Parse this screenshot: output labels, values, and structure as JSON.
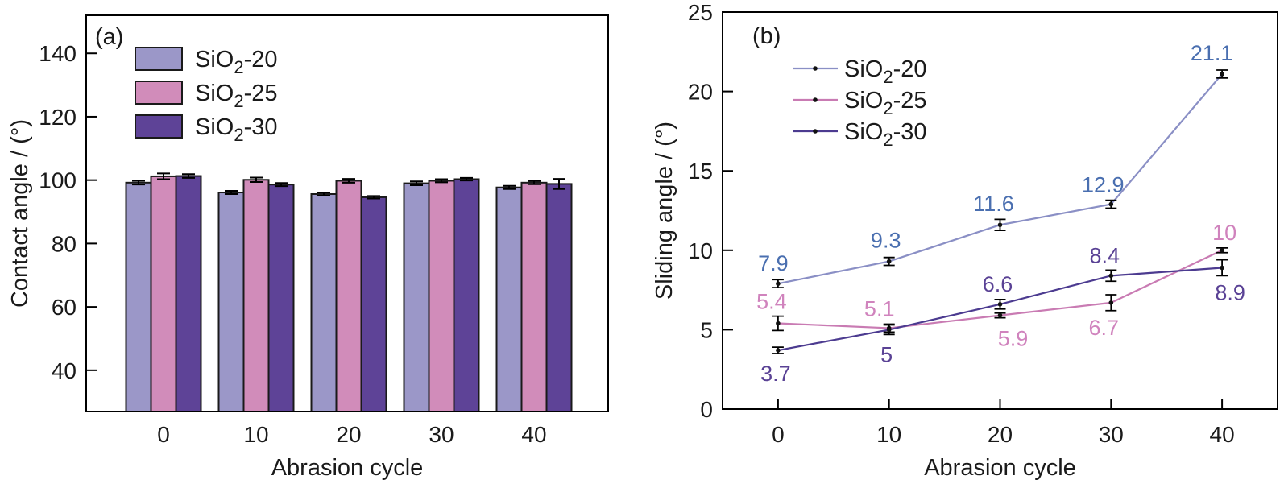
{
  "chart_data": [
    {
      "panel": "a",
      "tag": "(a)",
      "type": "bar",
      "xlabel": "Abrasion cycle",
      "ylabel": "Contact angle / (°)",
      "categories": [
        "0",
        "10",
        "20",
        "30",
        "40"
      ],
      "ylim": [
        27,
        152
      ],
      "yticks": [
        40,
        60,
        80,
        100,
        120,
        140
      ],
      "grid": false,
      "legend_position": "upper-left-inside",
      "axis_color": "#000000",
      "text_color": "#1a1a1a",
      "series": [
        {
          "label": "SiO2-20",
          "label_base": "SiO",
          "label_sub": "2",
          "label_rest": "-20",
          "color": "#9b97c8",
          "values": [
            99.2,
            96.1,
            95.6,
            99.0,
            97.7
          ],
          "errors": [
            0.6,
            0.5,
            0.5,
            0.6,
            0.5
          ]
        },
        {
          "label": "SiO2-25",
          "label_base": "SiO",
          "label_sub": "2",
          "label_rest": "-25",
          "color": "#d18cba",
          "values": [
            101.2,
            100.1,
            99.8,
            99.8,
            99.2
          ],
          "errors": [
            0.9,
            0.7,
            0.6,
            0.5,
            0.5
          ]
        },
        {
          "label": "SiO2-30",
          "label_base": "SiO",
          "label_sub": "2",
          "label_rest": "-30",
          "color": "#5e4397",
          "values": [
            101.3,
            98.6,
            94.6,
            100.3,
            98.8
          ],
          "errors": [
            0.6,
            0.5,
            0.4,
            0.4,
            1.6
          ]
        }
      ]
    },
    {
      "panel": "b",
      "tag": "(b)",
      "type": "line",
      "xlabel": "Abrasion cycle",
      "ylabel": "Sliding angle / (°)",
      "x": [
        0,
        10,
        20,
        30,
        40
      ],
      "xticks": [
        "0",
        "10",
        "20",
        "30",
        "40"
      ],
      "xlim": [
        -5,
        45
      ],
      "ylim": [
        0,
        25
      ],
      "yticks": [
        0,
        5,
        10,
        15,
        20,
        25
      ],
      "grid": false,
      "legend_position": "upper-left-inside",
      "axis_color": "#000000",
      "text_color": "#1a1a1a",
      "series": [
        {
          "label": "SiO2-20",
          "label_base": "SiO",
          "label_sub": "2",
          "label_rest": "-20",
          "color": "#8a8fc5",
          "label_color": "#4a6fb0",
          "values": [
            7.9,
            9.3,
            11.6,
            12.9,
            21.1
          ],
          "errors": [
            0.25,
            0.25,
            0.35,
            0.25,
            0.25
          ],
          "point_labels": [
            "7.9",
            "9.3",
            "11.6",
            "12.9",
            "21.1"
          ],
          "label_offsets": [
            [
              -6,
              -16
            ],
            [
              -4,
              -17
            ],
            [
              -8,
              -17
            ],
            [
              -10,
              -15
            ],
            [
              -13,
              -17
            ]
          ]
        },
        {
          "label": "SiO2-25",
          "label_base": "SiO",
          "label_sub": "2",
          "label_rest": "-25",
          "color": "#c97bb3",
          "label_color": "#d083bd",
          "values": [
            5.4,
            5.1,
            5.9,
            6.7,
            10
          ],
          "errors": [
            0.45,
            0.25,
            0.15,
            0.5,
            0.15
          ],
          "point_labels": [
            "5.4",
            "5.1",
            "5.9",
            "6.7",
            "10"
          ],
          "label_offsets": [
            [
              -8,
              -18
            ],
            [
              -12,
              -15
            ],
            [
              16,
              38
            ],
            [
              -9,
              40
            ],
            [
              3,
              -13
            ]
          ]
        },
        {
          "label": "SiO2-30",
          "label_base": "SiO",
          "label_sub": "2",
          "label_rest": "-30",
          "color": "#4c3b90",
          "label_color": "#5a4295",
          "values": [
            3.7,
            5,
            6.6,
            8.4,
            8.9
          ],
          "errors": [
            0.2,
            0.3,
            0.3,
            0.35,
            0.5
          ],
          "point_labels": [
            "3.7",
            "5",
            "6.6",
            "8.4",
            "8.9"
          ],
          "label_offsets": [
            [
              -3,
              38
            ],
            [
              -3,
              40
            ],
            [
              -3,
              -16
            ],
            [
              -8,
              -16
            ],
            [
              10,
              40
            ]
          ]
        }
      ]
    }
  ]
}
